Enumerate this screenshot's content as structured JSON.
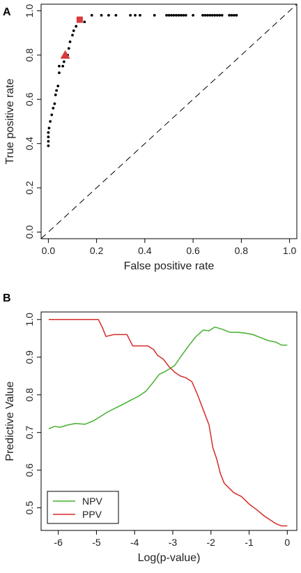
{
  "chart_data": [
    {
      "panel": "A",
      "type": "scatter",
      "title": "",
      "xlabel": "False positive rate",
      "ylabel": "True positive rate",
      "xlim": [
        -0.03,
        1.03
      ],
      "ylim": [
        -0.03,
        1.03
      ],
      "xticks": [
        0.0,
        0.2,
        0.4,
        0.6,
        0.8,
        1.0
      ],
      "yticks": [
        0.0,
        0.2,
        0.4,
        0.6,
        0.8,
        1.0
      ],
      "xtick_labels": [
        "0.0",
        "0.2",
        "0.4",
        "0.6",
        "0.8",
        "1.0"
      ],
      "ytick_labels": [
        "0.0",
        "0.2",
        "0.4",
        "0.6",
        "0.8",
        "1.0"
      ],
      "diagonal_reference": true,
      "grid": false,
      "series": [
        {
          "marker": "dot",
          "color": "#000000",
          "points": [
            [
              0.0,
              0.39
            ],
            [
              0.0,
              0.41
            ],
            [
              0.0,
              0.43
            ],
            [
              0.0,
              0.45
            ],
            [
              0.003,
              0.47
            ],
            [
              0.008,
              0.5
            ],
            [
              0.014,
              0.53
            ],
            [
              0.02,
              0.56
            ],
            [
              0.026,
              0.58
            ],
            [
              0.03,
              0.62
            ],
            [
              0.034,
              0.64
            ],
            [
              0.04,
              0.66
            ],
            [
              0.045,
              0.72
            ],
            [
              0.045,
              0.75
            ],
            [
              0.06,
              0.75
            ],
            [
              0.065,
              0.77
            ],
            [
              0.08,
              0.8
            ],
            [
              0.085,
              0.83
            ],
            [
              0.09,
              0.86
            ],
            [
              0.1,
              0.89
            ],
            [
              0.105,
              0.91
            ],
            [
              0.115,
              0.93
            ],
            [
              0.15,
              0.95
            ],
            [
              0.18,
              0.98
            ],
            [
              0.22,
              0.98
            ],
            [
              0.25,
              0.98
            ],
            [
              0.28,
              0.98
            ],
            [
              0.34,
              0.98
            ],
            [
              0.36,
              0.98
            ],
            [
              0.38,
              0.98
            ],
            [
              0.44,
              0.98
            ],
            [
              0.49,
              0.98
            ],
            [
              0.5,
              0.98
            ],
            [
              0.51,
              0.98
            ],
            [
              0.52,
              0.98
            ],
            [
              0.53,
              0.98
            ],
            [
              0.54,
              0.98
            ],
            [
              0.55,
              0.98
            ],
            [
              0.56,
              0.98
            ],
            [
              0.57,
              0.98
            ],
            [
              0.6,
              0.98
            ],
            [
              0.64,
              0.98
            ],
            [
              0.65,
              0.98
            ],
            [
              0.66,
              0.98
            ],
            [
              0.67,
              0.98
            ],
            [
              0.68,
              0.98
            ],
            [
              0.69,
              0.98
            ],
            [
              0.7,
              0.98
            ],
            [
              0.71,
              0.98
            ],
            [
              0.72,
              0.98
            ],
            [
              0.75,
              0.98
            ],
            [
              0.76,
              0.98
            ],
            [
              0.77,
              0.98
            ],
            [
              0.78,
              0.98
            ]
          ]
        },
        {
          "marker": "triangle",
          "color": "#d93a3a",
          "points": [
            [
              0.07,
              0.8
            ]
          ]
        },
        {
          "marker": "square",
          "color": "#d93a3a",
          "points": [
            [
              0.13,
              0.96
            ]
          ]
        }
      ]
    },
    {
      "panel": "B",
      "type": "line",
      "title": "",
      "xlabel": "Log(p-value)",
      "ylabel": "Predictive Value",
      "xlim": [
        -6.45,
        0.25
      ],
      "ylim": [
        0.44,
        1.02
      ],
      "xticks": [
        -6,
        -5,
        -4,
        -3,
        -2,
        -1,
        0
      ],
      "yticks": [
        0.5,
        0.6,
        0.7,
        0.8,
        0.9,
        1.0
      ],
      "xtick_labels": [
        "-6",
        "-5",
        "-4",
        "-3",
        "-2",
        "-1",
        "0"
      ],
      "ytick_labels": [
        "0.5",
        "0.6",
        "0.7",
        "0.8",
        "0.9",
        "1.0"
      ],
      "grid": false,
      "legend": {
        "position": "bottom-left",
        "entries": [
          "NPV",
          "PPV"
        ]
      },
      "series": [
        {
          "name": "NPV",
          "color": "#44b02e",
          "x": [
            -6.25,
            -6.1,
            -5.95,
            -5.75,
            -5.55,
            -5.3,
            -5.1,
            -4.9,
            -4.7,
            -4.5,
            -4.3,
            -4.1,
            -3.9,
            -3.7,
            -3.5,
            -3.35,
            -3.2,
            -3.1,
            -2.95,
            -2.8,
            -2.6,
            -2.4,
            -2.2,
            -2.05,
            -1.9,
            -1.7,
            -1.5,
            -1.3,
            -1.1,
            -0.9,
            -0.7,
            -0.5,
            -0.3,
            -0.15,
            0.0
          ],
          "y": [
            0.71,
            0.716,
            0.714,
            0.72,
            0.724,
            0.722,
            0.73,
            0.742,
            0.755,
            0.765,
            0.775,
            0.786,
            0.796,
            0.81,
            0.835,
            0.855,
            0.862,
            0.868,
            0.878,
            0.9,
            0.928,
            0.954,
            0.972,
            0.97,
            0.98,
            0.974,
            0.966,
            0.966,
            0.964,
            0.96,
            0.952,
            0.944,
            0.94,
            0.932,
            0.932
          ]
        },
        {
          "name": "PPV",
          "color": "#d52b2b",
          "x": [
            -6.25,
            -6.0,
            -5.75,
            -5.5,
            -5.2,
            -4.95,
            -4.85,
            -4.75,
            -4.55,
            -4.35,
            -4.2,
            -4.05,
            -3.85,
            -3.65,
            -3.5,
            -3.4,
            -3.25,
            -3.1,
            -2.95,
            -2.8,
            -2.65,
            -2.5,
            -2.35,
            -2.2,
            -2.05,
            -1.95,
            -1.85,
            -1.75,
            -1.65,
            -1.55,
            -1.4,
            -1.2,
            -1.0,
            -0.8,
            -0.6,
            -0.45,
            -0.3,
            -0.15,
            0.0
          ],
          "y": [
            1.0,
            1.0,
            1.0,
            1.0,
            1.0,
            1.0,
            0.98,
            0.955,
            0.96,
            0.96,
            0.96,
            0.93,
            0.93,
            0.93,
            0.92,
            0.905,
            0.895,
            0.875,
            0.86,
            0.85,
            0.845,
            0.835,
            0.8,
            0.76,
            0.72,
            0.66,
            0.63,
            0.59,
            0.565,
            0.555,
            0.54,
            0.53,
            0.51,
            0.495,
            0.478,
            0.468,
            0.458,
            0.452,
            0.452
          ]
        }
      ]
    }
  ]
}
